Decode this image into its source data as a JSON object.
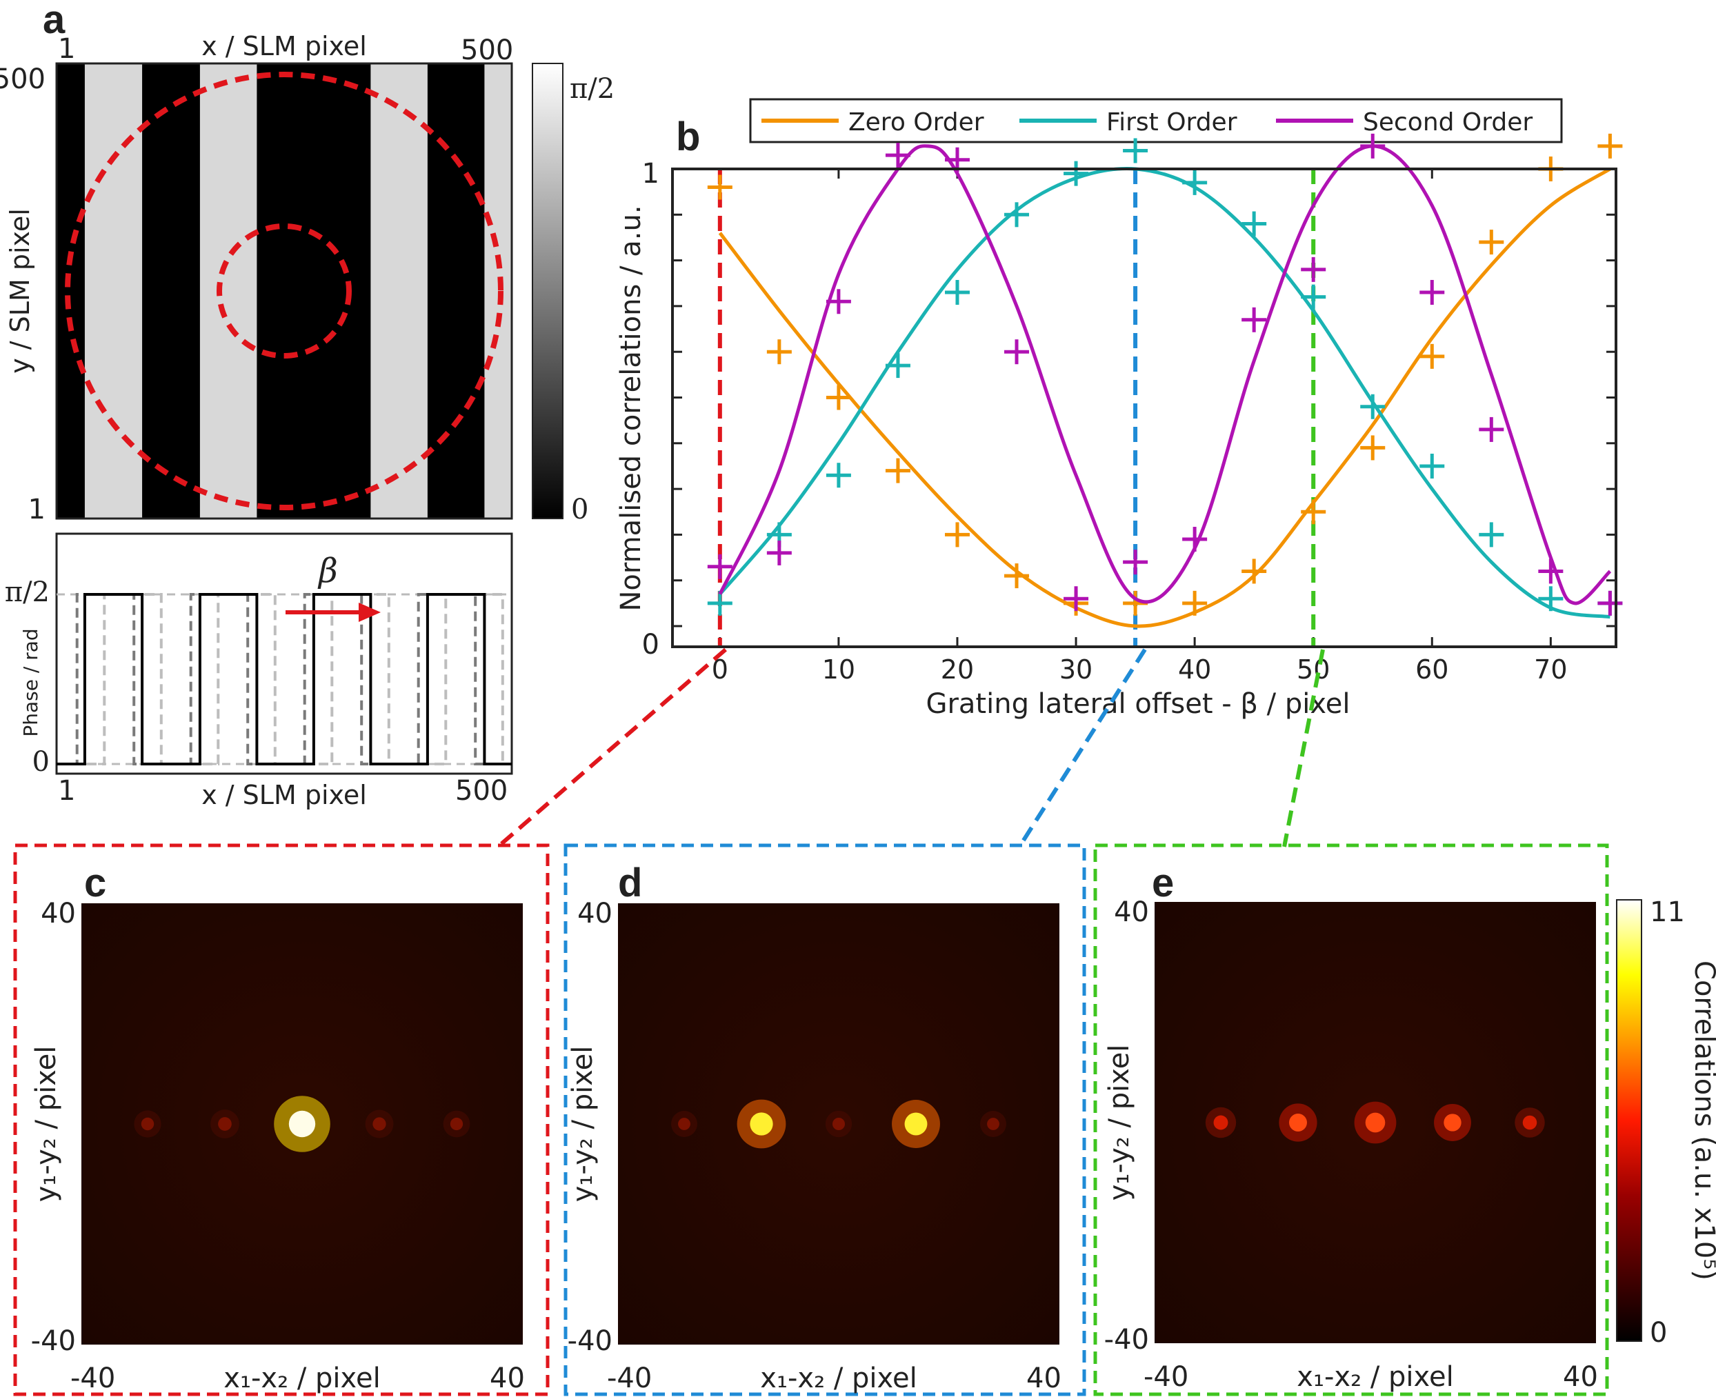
{
  "panels": {
    "a": "a",
    "b": "b",
    "c": "c",
    "d": "d",
    "e": "e"
  },
  "panel_a": {
    "xlabel": "x / SLM pixel",
    "ylabel": "y / SLM pixel",
    "x_ticks": [
      "1",
      "500"
    ],
    "y_ticks": [
      "500",
      "1"
    ],
    "colorbar_ticks": [
      "π/2",
      "0"
    ],
    "stripe_sequence": [
      "black",
      "light",
      "black",
      "light",
      "black",
      "light"
    ],
    "overlay_color": "#e0161c",
    "light_color": "#d8d8d8"
  },
  "panel_a_profile": {
    "xlabel": "x / SLM pixel",
    "ylabel": "Phase / rad",
    "x_ticks": [
      "1",
      "500"
    ],
    "y_ticks": [
      "π/2",
      "0"
    ],
    "arrow_label": "β",
    "arrow_color": "#e0161c"
  },
  "chart_data": {
    "type": "line",
    "xlabel": "Grating lateral offset - β / pixel",
    "ylabel": "Normalised correlations / a.u.",
    "xlim": [
      -4,
      75.5
    ],
    "ylim": [
      0,
      1
    ],
    "x_ticks": [
      "0",
      "10",
      "20",
      "30",
      "40",
      "50",
      "60",
      "70"
    ],
    "y_ticks": [
      "0",
      "1"
    ],
    "grid": false,
    "legend_position": "top",
    "series": [
      {
        "name": "Zero Order",
        "color": "#f39200",
        "fit_x": [
          0,
          5,
          10,
          15,
          20,
          25,
          30,
          35,
          40,
          45,
          50,
          55,
          60,
          65,
          70,
          75
        ],
        "fit_y": [
          0.86,
          0.69,
          0.53,
          0.38,
          0.24,
          0.12,
          0.04,
          0.0,
          0.03,
          0.11,
          0.27,
          0.44,
          0.63,
          0.79,
          0.92,
          1.0
        ],
        "measured_x": [
          0,
          5,
          10,
          15,
          20,
          25,
          30,
          35,
          40,
          45,
          50,
          55,
          60,
          65,
          70,
          75
        ],
        "measured_y": [
          0.96,
          0.6,
          0.5,
          0.34,
          0.2,
          0.11,
          0.05,
          0.05,
          0.05,
          0.12,
          0.25,
          0.39,
          0.59,
          0.84,
          1.0,
          1.05
        ]
      },
      {
        "name": "First Order",
        "color": "#1ab3b3",
        "fit_x": [
          0,
          5,
          10,
          15,
          20,
          25,
          30,
          35,
          40,
          45,
          50,
          55,
          60,
          65,
          70,
          75
        ],
        "fit_y": [
          0.07,
          0.22,
          0.4,
          0.6,
          0.78,
          0.91,
          0.98,
          1.0,
          0.96,
          0.85,
          0.69,
          0.49,
          0.3,
          0.14,
          0.04,
          0.02
        ],
        "measured_x": [
          0,
          5,
          10,
          15,
          20,
          25,
          30,
          35,
          40,
          45,
          50,
          55,
          60,
          65,
          70,
          75
        ],
        "measured_y": [
          0.05,
          0.2,
          0.33,
          0.57,
          0.73,
          0.9,
          0.99,
          1.04,
          0.97,
          0.88,
          0.72,
          0.48,
          0.35,
          0.2,
          0.06,
          0.05
        ]
      },
      {
        "name": "Second Order",
        "color": "#b012b3",
        "fit_x": [
          0,
          5,
          10,
          15,
          17.5,
          20,
          25,
          30,
          35,
          40,
          45,
          50,
          55,
          60,
          65,
          70,
          72,
          75
        ],
        "fit_y": [
          0.07,
          0.34,
          0.77,
          1.0,
          1.05,
          0.99,
          0.7,
          0.33,
          0.06,
          0.17,
          0.58,
          0.92,
          1.05,
          0.92,
          0.55,
          0.15,
          0.05,
          0.12
        ],
        "measured_x": [
          0,
          5,
          10,
          15,
          20,
          25,
          30,
          35,
          40,
          45,
          50,
          55,
          60,
          65,
          70,
          75
        ],
        "measured_y": [
          0.13,
          0.16,
          0.71,
          1.03,
          1.02,
          0.6,
          0.06,
          0.14,
          0.19,
          0.67,
          0.78,
          1.05,
          0.73,
          0.43,
          0.12,
          0.05
        ]
      }
    ],
    "markers": [
      {
        "x": 0,
        "color": "#e0161c"
      },
      {
        "x": 35,
        "color": "#1f8bd6"
      },
      {
        "x": 50,
        "color": "#3ec41f"
      }
    ]
  },
  "heatmaps": {
    "xlabel": "x₁-x₂ / pixel",
    "ylabel": "y₁-y₂ / pixel",
    "x_ticks": [
      "-40",
      "40"
    ],
    "y_ticks": [
      "40",
      "-40"
    ],
    "colorbar_label": "Correlations (a.u. x10⁵)",
    "colorbar_ticks": [
      "11",
      "0"
    ],
    "frames": [
      {
        "label": "c",
        "border_color": "#e0161c",
        "peaks": [
          {
            "dx": -28,
            "value": 1.2
          },
          {
            "dx": -14,
            "value": 1.8
          },
          {
            "dx": 0,
            "value": 11
          },
          {
            "dx": 14,
            "value": 1.6
          },
          {
            "dx": 28,
            "value": 1.1
          }
        ]
      },
      {
        "label": "d",
        "border_color": "#1f8bd6",
        "peaks": [
          {
            "dx": -28,
            "value": 0.9
          },
          {
            "dx": -14,
            "value": 8.5
          },
          {
            "dx": 0,
            "value": 1.0
          },
          {
            "dx": 14,
            "value": 8.3
          },
          {
            "dx": 28,
            "value": 0.9
          }
        ]
      },
      {
        "label": "e",
        "border_color": "#3ec41f",
        "peaks": [
          {
            "dx": -28,
            "value": 2.4
          },
          {
            "dx": -14,
            "value": 4.9
          },
          {
            "dx": 0,
            "value": 6.2
          },
          {
            "dx": 14,
            "value": 4.6
          },
          {
            "dx": 28,
            "value": 2.2
          }
        ]
      }
    ]
  }
}
